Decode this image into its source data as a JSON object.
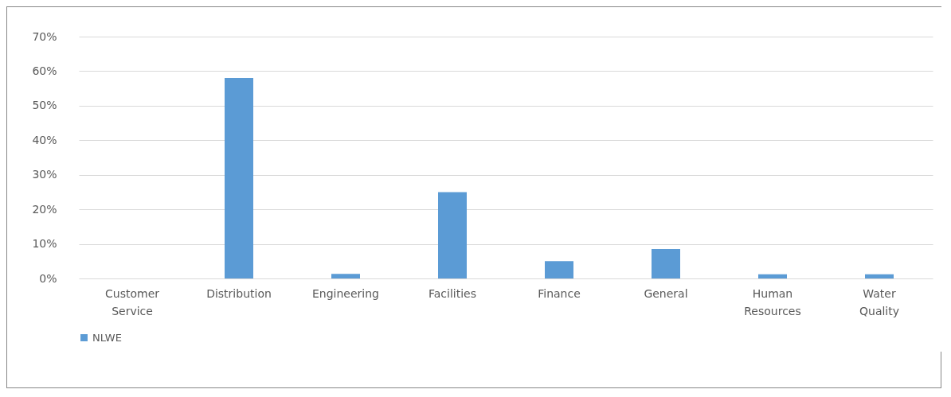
{
  "chart_data": {
    "type": "bar",
    "categories": [
      "Customer Service",
      "Distribution",
      "Engineering",
      "Facilities",
      "Finance",
      "General",
      "Human Resources",
      "Water Quality"
    ],
    "series": [
      {
        "name": "NLWE",
        "color": "#5b9bd5",
        "values": [
          0,
          58,
          1.3,
          25,
          5,
          8.5,
          1.2,
          1.2
        ]
      }
    ],
    "ylim": [
      0,
      70
    ],
    "yticks": [
      {
        "value": 0,
        "label": "0%"
      },
      {
        "value": 10,
        "label": "10%"
      },
      {
        "value": 20,
        "label": "20%"
      },
      {
        "value": 30,
        "label": "30%"
      },
      {
        "value": 40,
        "label": "40%"
      },
      {
        "value": 50,
        "label": "50%"
      },
      {
        "value": 60,
        "label": "60%"
      },
      {
        "value": 70,
        "label": "70%"
      }
    ],
    "grid": "y",
    "legend": "bottom"
  }
}
